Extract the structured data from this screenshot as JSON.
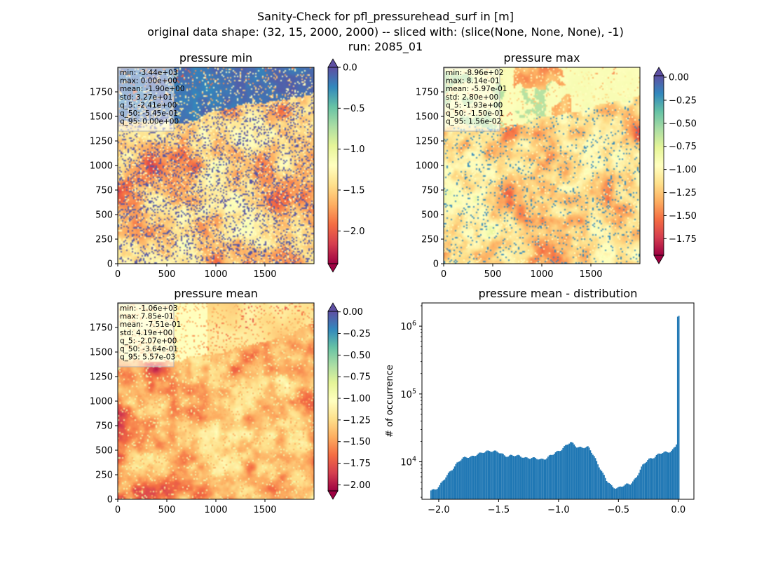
{
  "figure": {
    "suptitle_lines": [
      "Sanity-Check for pfl_pressurehead_surf in [m]",
      "original data shape: (32, 15, 2000, 2000) -- sliced with: (slice(None, None, None), -1)",
      "run: 2085_01"
    ]
  },
  "colormap": "Spectral",
  "chart_data": [
    {
      "type": "heatmap",
      "title": "pressure min",
      "xlim": [
        0,
        2000
      ],
      "ylim": [
        0,
        2000
      ],
      "x_ticks": [
        0,
        500,
        1000,
        1500
      ],
      "y_ticks": [
        0,
        250,
        500,
        750,
        1000,
        1250,
        1500,
        1750
      ],
      "colorbar": {
        "vmin": -2.4,
        "vmax": 0.0,
        "ticks": [
          "0.0",
          "−0.5",
          "−1.0",
          "−1.5",
          "−2.0"
        ],
        "tick_values": [
          0.0,
          -0.5,
          -1.0,
          -1.5,
          -2.0
        ],
        "extend_top_color": "#5e4fa2",
        "extend_bottom_color": "#9e0142"
      },
      "stats": [
        "min: -3.44e+03",
        "max: 0.00e+00",
        "mean: -1.90e+00",
        "std: 3.27e+01",
        "q_5: -2.41e+00",
        "q_50: -5.45e-01",
        "q_95: 0.00e+00"
      ]
    },
    {
      "type": "heatmap",
      "title": "pressure max",
      "xlim": [
        0,
        2000
      ],
      "ylim": [
        0,
        2000
      ],
      "x_ticks": [
        0,
        500,
        1000,
        1500
      ],
      "y_ticks": [
        0,
        250,
        500,
        750,
        1000,
        1250,
        1500,
        1750
      ],
      "colorbar": {
        "vmin": -1.93,
        "vmax": 0.0156,
        "ticks": [
          "0.00",
          "−0.25",
          "−0.50",
          "−0.75",
          "−1.00",
          "−1.25",
          "−1.50",
          "−1.75"
        ],
        "tick_values": [
          0.0,
          -0.25,
          -0.5,
          -0.75,
          -1.0,
          -1.25,
          -1.5,
          -1.75
        ],
        "extend_top_color": "#5e4fa2",
        "extend_bottom_color": "#9e0142"
      },
      "stats": [
        "min: -8.96e+02",
        "max: 8.14e-01",
        "mean: -5.97e-01",
        "std: 2.80e+00",
        "q_5: -1.93e+00",
        "q_50: -1.50e-01",
        "q_95: 1.56e-02"
      ]
    },
    {
      "type": "heatmap",
      "title": "pressure mean",
      "xlim": [
        0,
        2000
      ],
      "ylim": [
        0,
        2000
      ],
      "x_ticks": [
        0,
        500,
        1000,
        1500
      ],
      "y_ticks": [
        0,
        250,
        500,
        750,
        1000,
        1250,
        1500,
        1750
      ],
      "colorbar": {
        "vmin": -2.07,
        "vmax": 0.00557,
        "ticks": [
          "0.00",
          "−0.25",
          "−0.50",
          "−0.75",
          "−1.00",
          "−1.25",
          "−1.50",
          "−1.75",
          "−2.00"
        ],
        "tick_values": [
          0.0,
          -0.25,
          -0.5,
          -0.75,
          -1.0,
          -1.25,
          -1.5,
          -1.75,
          -2.0
        ],
        "extend_top_color": "#5e4fa2",
        "extend_bottom_color": "#9e0142"
      },
      "stats": [
        "min: -1.06e+03",
        "max: 7.85e-01",
        "mean: -7.51e-01",
        "std: 4.19e+00",
        "q_5: -2.07e+00",
        "q_50: -3.64e-01",
        "q_95: 5.57e-03"
      ]
    },
    {
      "type": "bar",
      "title": "pressure mean - distribution",
      "ylabel": "# of occurrence",
      "yscale": "log",
      "xlim": [
        -2.14,
        0.13
      ],
      "ylim": [
        2800,
        2200000
      ],
      "x_ticks": [
        -2.0,
        -1.5,
        -1.0,
        -0.5,
        0.0
      ],
      "x_tick_labels": [
        "−2.0",
        "−1.5",
        "−1.0",
        "−0.5",
        "0.0"
      ],
      "y_ticks": [
        10000,
        100000,
        1000000
      ],
      "y_tick_labels": [
        "10^4",
        "10^5",
        "10^6"
      ],
      "color": "#1f77b4",
      "bins": {
        "start": -2.07,
        "width": 0.0104
      },
      "profile_x": [
        -2.07,
        -2.03,
        -1.99,
        -1.95,
        -1.9,
        -1.85,
        -1.8,
        -1.75,
        -1.7,
        -1.65,
        -1.6,
        -1.57,
        -1.5,
        -1.45,
        -1.4,
        -1.35,
        -1.3,
        -1.25,
        -1.2,
        -1.15,
        -1.1,
        -1.05,
        -1.0,
        -0.95,
        -0.9,
        -0.85,
        -0.8,
        -0.75,
        -0.7,
        -0.65,
        -0.6,
        -0.55,
        -0.5,
        -0.45,
        -0.4,
        -0.35,
        -0.3,
        -0.25,
        -0.2,
        -0.15,
        -0.1,
        -0.05,
        -0.02,
        -0.01,
        -0.005,
        0.0,
        0.005
      ],
      "profile_y": [
        3800,
        4000,
        4500,
        5500,
        7500,
        9500,
        11000,
        12000,
        12500,
        13000,
        14500,
        15000,
        13500,
        12500,
        12500,
        12000,
        12000,
        11500,
        11000,
        11000,
        11500,
        12500,
        14500,
        17000,
        19000,
        17000,
        16500,
        16000,
        12000,
        8000,
        5200,
        4300,
        4200,
        4400,
        4800,
        6000,
        8500,
        11000,
        12000,
        13000,
        14000,
        15000,
        17000,
        20000,
        33000,
        1380000,
        4000
      ]
    }
  ]
}
